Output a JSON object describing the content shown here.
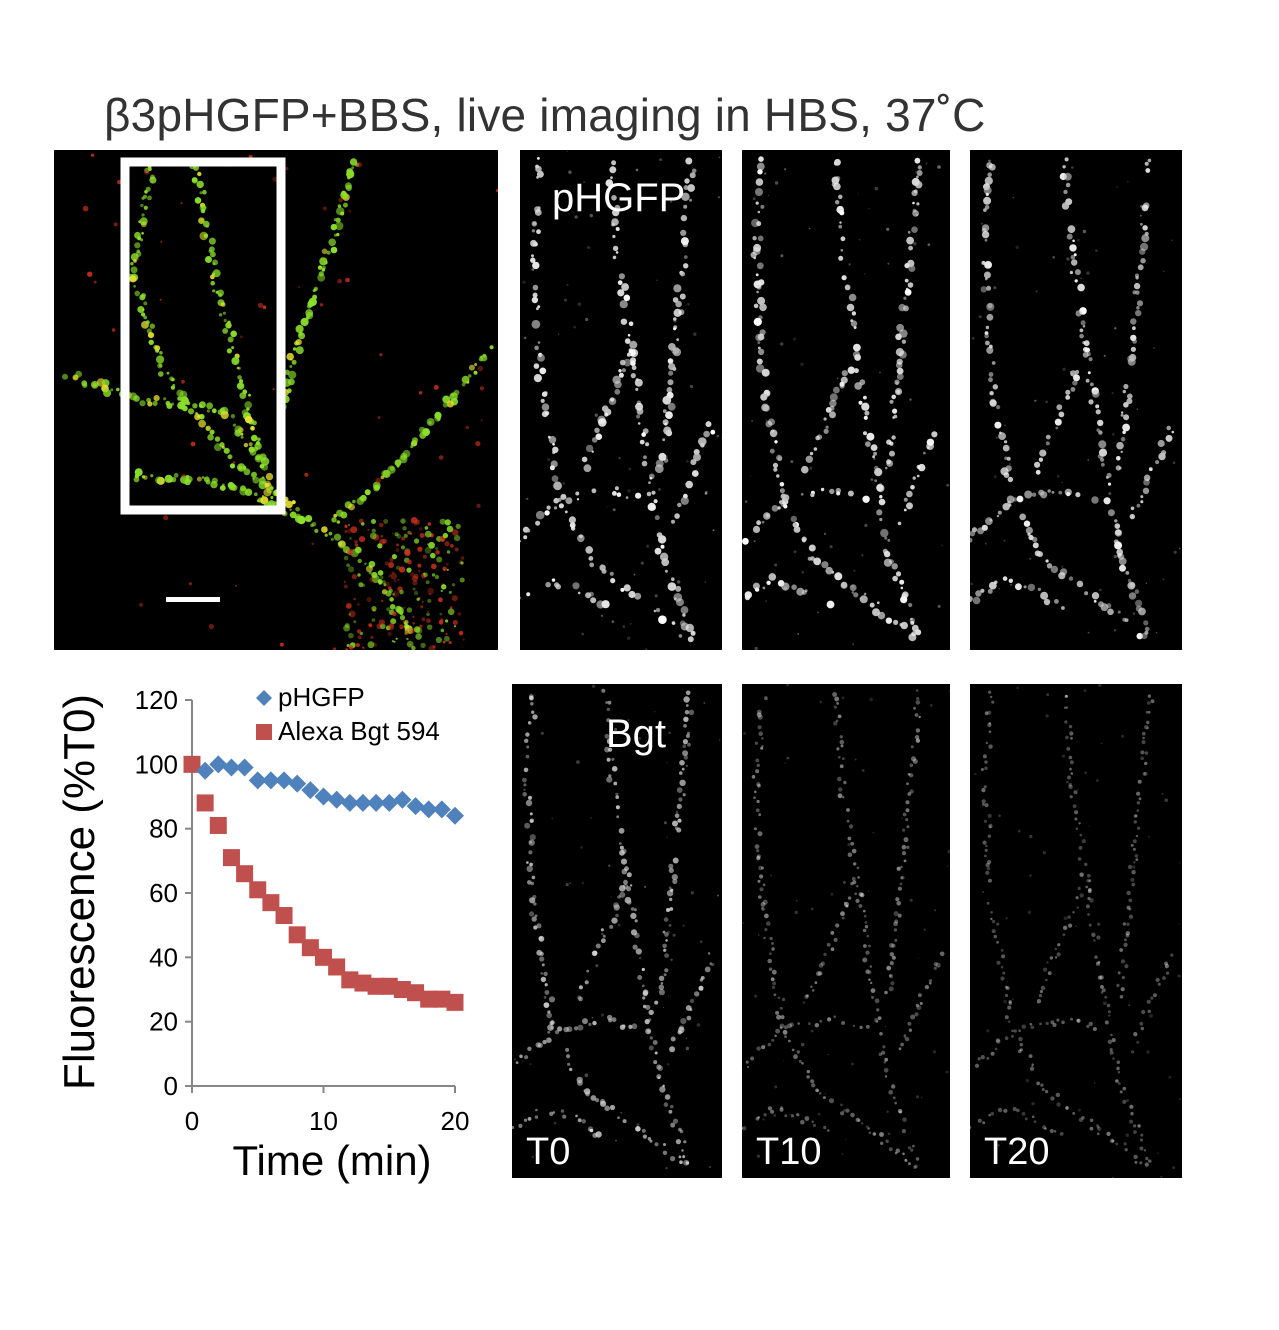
{
  "figure": {
    "title": "β3pHGFP+BBS, live imaging in HBS, 37˚C"
  },
  "panels": {
    "overlay": {
      "name": "merged-overlay"
    },
    "row1_label": "pHGFP",
    "row2_label": "Bgt",
    "time_labels": [
      "T0",
      "T10",
      "T20"
    ]
  },
  "colors": {
    "pHGFP_series": "#4F81BD",
    "bgt_series": "#C0504D",
    "overlay_green": "#8BE02A",
    "overlay_red": "#D4321E",
    "panel_bg": "#000000"
  },
  "chart_data": {
    "type": "scatter",
    "title": "",
    "xlabel": "Time (min)",
    "ylabel": "Fluorescence (%T0)",
    "xlim": [
      0,
      20
    ],
    "ylim": [
      0,
      120
    ],
    "xticks": [
      "0",
      "10",
      "20"
    ],
    "yticks": [
      "0",
      "20",
      "40",
      "60",
      "80",
      "100",
      "120"
    ],
    "legend_position": "top-right",
    "series": [
      {
        "name": "pHGFP",
        "marker": "diamond",
        "x": [
          1,
          2,
          3,
          4,
          5,
          6,
          7,
          8,
          9,
          10,
          11,
          12,
          13,
          14,
          15,
          16,
          17,
          18,
          19,
          20
        ],
        "y": [
          98,
          100,
          99,
          99,
          95,
          95,
          95,
          94,
          92,
          90,
          89,
          88,
          88,
          88,
          88,
          89,
          87,
          86,
          86,
          84
        ]
      },
      {
        "name": "Alexa Bgt 594",
        "marker": "square",
        "x": [
          0,
          1,
          2,
          3,
          4,
          5,
          6,
          7,
          8,
          9,
          10,
          11,
          12,
          13,
          14,
          15,
          16,
          17,
          18,
          19,
          20
        ],
        "y": [
          100,
          88,
          81,
          71,
          66,
          61,
          57,
          53,
          47,
          43,
          40,
          37,
          33,
          32,
          31,
          31,
          30,
          29,
          27,
          27,
          26
        ]
      }
    ]
  }
}
